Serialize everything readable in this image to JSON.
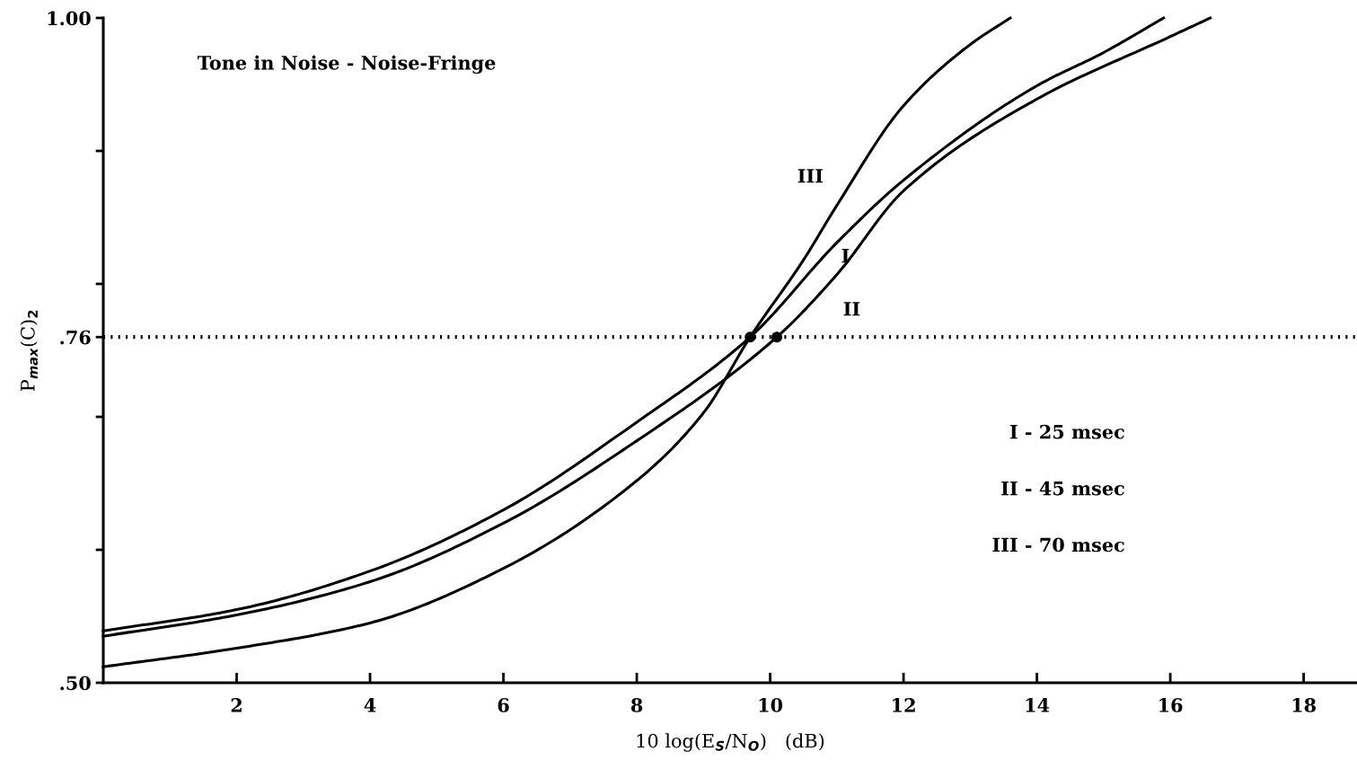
{
  "chart_data": {
    "type": "line",
    "title": "Tone in Noise - Noise-Fringe",
    "xlabel": "10 log(E$_{S}$/N$_{O}$)   (dB)",
    "ylabel": "P$_{max}$(C)$_{2}$",
    "xlim": [
      0,
      18.8
    ],
    "ylim": [
      0.5,
      1.0
    ],
    "xticks": [
      2,
      4,
      6,
      8,
      10,
      12,
      14,
      16,
      18
    ],
    "yticks": [
      {
        "value": 0.5,
        "label": ".50"
      },
      {
        "value": 0.6,
        "label": null
      },
      {
        "value": 0.7,
        "label": null
      },
      {
        "value": 0.76,
        "label": ".76"
      },
      {
        "value": 0.8,
        "label": null
      },
      {
        "value": 0.9,
        "label": null
      },
      {
        "value": 1.0,
        "label": "1.00"
      }
    ],
    "grid": false,
    "legend": false,
    "marker": "none",
    "line_style": "solid",
    "series": [
      {
        "color": "#000000",
        "x": [
          0,
          2,
          4,
          6,
          8,
          9.7,
          11,
          12,
          14,
          15,
          15.9
        ],
        "values": [
          0.539,
          0.555,
          0.584,
          0.63,
          0.696,
          0.76,
          0.831,
          0.878,
          0.949,
          0.974,
          1.0
        ]
      },
      {
        "color": "#000000",
        "x": [
          0,
          2,
          4,
          6,
          8,
          10.1,
          11,
          12,
          14,
          16,
          16.6
        ],
        "values": [
          0.535,
          0.551,
          0.576,
          0.62,
          0.682,
          0.76,
          0.807,
          0.87,
          0.939,
          0.986,
          1.0
        ]
      },
      {
        "color": "#000000",
        "x": [
          0,
          2,
          4,
          6,
          8,
          9,
          9.7,
          10.5,
          11,
          12,
          13,
          13.6
        ],
        "values": [
          0.512,
          0.526,
          0.545,
          0.586,
          0.652,
          0.703,
          0.76,
          0.818,
          0.859,
          0.934,
          0.98,
          1.0
        ]
      },
      {
        "type": "scatter",
        "marker": "circle",
        "color": "#000000",
        "x": [
          9.7,
          10.1
        ],
        "values": [
          0.76,
          0.76
        ]
      }
    ],
    "ref_lines": [
      {
        "axis": "y",
        "value": 0.76,
        "line_style": "dotted",
        "color": "#000000"
      }
    ],
    "annotations": [
      "III",
      "I",
      "II",
      "I - 25 msec",
      "II - 45 msec",
      "III - 70 msec"
    ]
  }
}
